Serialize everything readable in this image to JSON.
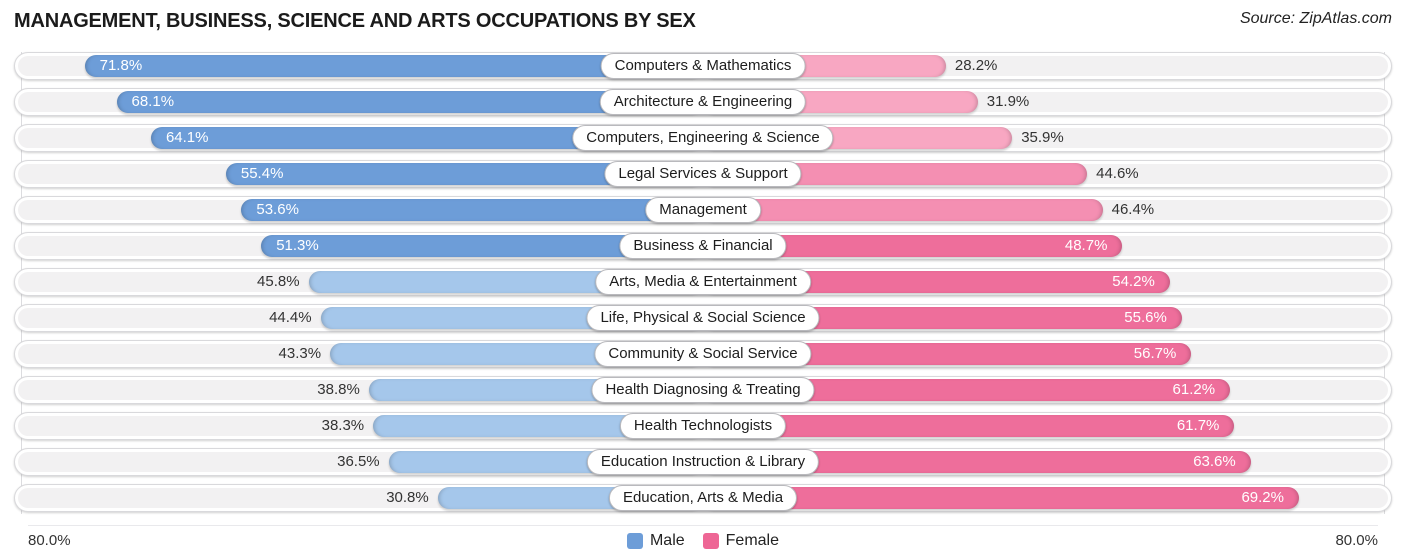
{
  "header": {
    "title": "MANAGEMENT, BUSINESS, SCIENCE AND ARTS OCCUPATIONS BY SEX",
    "source": "Source: ZipAtlas.com"
  },
  "axis": {
    "left_label": "80.0%",
    "right_label": "80.0%",
    "max_percent": 80
  },
  "legend": {
    "male_label": "Male",
    "female_label": "Female",
    "male_color": "#6D9DD8",
    "female_color": "#EE6695"
  },
  "colors": {
    "male_strong": "#6D9DD8",
    "male_light": "#A5C7EB",
    "female_strong": "#EE6E9B",
    "female_medium": "#F48FB2",
    "female_light": "#F8A7C2",
    "inside_text": "#FFFFFF",
    "outside_text": "#333333",
    "inside_threshold": 48
  },
  "chart_data": {
    "type": "bar",
    "orientation": "horizontal-diverging",
    "title": "MANAGEMENT, BUSINESS, SCIENCE AND ARTS OCCUPATIONS BY SEX",
    "axis_range_each_side": [
      0,
      80
    ],
    "unit": "%",
    "legend_position": "bottom-center",
    "categories": [
      "Computers & Mathematics",
      "Architecture & Engineering",
      "Computers, Engineering & Science",
      "Legal Services & Support",
      "Management",
      "Business & Financial",
      "Arts, Media & Entertainment",
      "Life, Physical & Social Science",
      "Community & Social Service",
      "Health Diagnosing & Treating",
      "Health Technologists",
      "Education Instruction & Library",
      "Education, Arts & Media"
    ],
    "series": [
      {
        "name": "Male",
        "values": [
          71.8,
          68.1,
          64.1,
          55.4,
          53.6,
          51.3,
          45.8,
          44.4,
          43.3,
          38.8,
          38.3,
          36.5,
          30.8
        ]
      },
      {
        "name": "Female",
        "values": [
          28.2,
          31.9,
          35.9,
          44.6,
          46.4,
          48.7,
          54.2,
          55.6,
          56.7,
          61.2,
          61.7,
          63.6,
          69.2
        ]
      }
    ],
    "value_labels": {
      "male": [
        "71.8%",
        "68.1%",
        "64.1%",
        "55.4%",
        "53.6%",
        "51.3%",
        "45.8%",
        "44.4%",
        "43.3%",
        "38.8%",
        "38.3%",
        "36.5%",
        "30.8%"
      ],
      "female": [
        "28.2%",
        "31.9%",
        "35.9%",
        "44.6%",
        "46.4%",
        "48.7%",
        "54.2%",
        "55.6%",
        "56.7%",
        "61.2%",
        "61.7%",
        "63.6%",
        "69.2%"
      ]
    }
  }
}
